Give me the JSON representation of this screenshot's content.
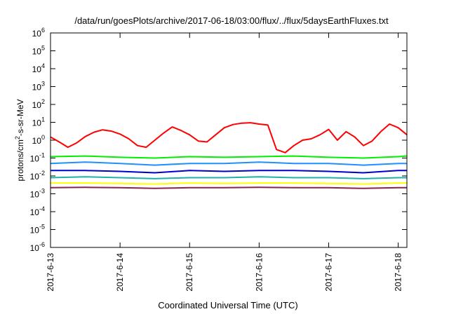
{
  "chart_data": {
    "type": "line",
    "title": "/data/run/goesPlots/archive/2017-06-18/03:00/flux/../flux/5daysEarthFluxes.txt",
    "xlabel": "Coordinated Universal Time (UTC)",
    "ylabel": {
      "pre": "protons/cm",
      "sup": "2",
      "post": "-s-sr-MeV"
    },
    "y_scale": "log",
    "ylim": [
      1e-06,
      1000000
    ],
    "y_ticks": [
      {
        "value": 1e-06,
        "base": "10",
        "exp": "-6"
      },
      {
        "value": 1e-05,
        "base": "10",
        "exp": "-5"
      },
      {
        "value": 0.0001,
        "base": "10",
        "exp": "-4"
      },
      {
        "value": 0.001,
        "base": "10",
        "exp": "-3"
      },
      {
        "value": 0.01,
        "base": "10",
        "exp": "-2"
      },
      {
        "value": 0.1,
        "base": "10",
        "exp": "-1"
      },
      {
        "value": 1,
        "base": "10",
        "exp": "0"
      },
      {
        "value": 10,
        "base": "10",
        "exp": "1"
      },
      {
        "value": 100,
        "base": "10",
        "exp": "2"
      },
      {
        "value": 1000,
        "base": "10",
        "exp": "3"
      },
      {
        "value": 10000,
        "base": "10",
        "exp": "4"
      },
      {
        "value": 100000,
        "base": "10",
        "exp": "5"
      },
      {
        "value": 1000000,
        "base": "10",
        "exp": "6"
      }
    ],
    "xlim": [
      "2017-06-13T00:00",
      "2017-06-18T03:00"
    ],
    "x_ticks": [
      {
        "value": "2017-06-13T00:00",
        "label": "2017-6-13"
      },
      {
        "value": "2017-06-14T00:00",
        "label": "2017-6-14"
      },
      {
        "value": "2017-06-15T00:00",
        "label": "2017-6-15"
      },
      {
        "value": "2017-06-16T00:00",
        "label": "2017-6-16"
      },
      {
        "value": "2017-06-17T00:00",
        "label": "2017-6-17"
      },
      {
        "value": "2017-06-18T00:00",
        "label": "2017-6-18"
      }
    ],
    "grid": false,
    "legend": "none",
    "series": [
      {
        "color": "#ff0000",
        "x": [
          "2017-06-13T00:00",
          "2017-06-13T03:00",
          "2017-06-13T06:00",
          "2017-06-13T09:00",
          "2017-06-13T12:00",
          "2017-06-13T15:00",
          "2017-06-13T18:00",
          "2017-06-13T21:00",
          "2017-06-14T00:00",
          "2017-06-14T03:00",
          "2017-06-14T06:00",
          "2017-06-14T09:00",
          "2017-06-14T12:00",
          "2017-06-14T15:00",
          "2017-06-14T18:00",
          "2017-06-14T21:00",
          "2017-06-15T00:00",
          "2017-06-15T03:00",
          "2017-06-15T06:00",
          "2017-06-15T09:00",
          "2017-06-15T12:00",
          "2017-06-15T15:00",
          "2017-06-15T18:00",
          "2017-06-15T21:00",
          "2017-06-16T00:00",
          "2017-06-16T03:00",
          "2017-06-16T06:00",
          "2017-06-16T09:00",
          "2017-06-16T12:00",
          "2017-06-16T15:00",
          "2017-06-16T18:00",
          "2017-06-16T21:00",
          "2017-06-17T00:00",
          "2017-06-17T03:00",
          "2017-06-17T06:00",
          "2017-06-17T09:00",
          "2017-06-17T12:00",
          "2017-06-17T15:00",
          "2017-06-17T18:00",
          "2017-06-17T21:00",
          "2017-06-18T00:00",
          "2017-06-18T03:00"
        ],
        "y": [
          1.5,
          0.8,
          0.4,
          0.7,
          1.6,
          2.8,
          3.8,
          3.2,
          2.2,
          1.2,
          0.5,
          0.4,
          1.0,
          2.5,
          5.5,
          3.5,
          2.0,
          0.9,
          0.8,
          2.0,
          5.0,
          7.5,
          9.0,
          9.5,
          8.0,
          7.0,
          0.3,
          0.2,
          0.5,
          1.0,
          1.2,
          2.0,
          4.0,
          1.0,
          3.0,
          1.5,
          0.5,
          0.9,
          3.0,
          8.0,
          5.0,
          2.0
        ]
      },
      {
        "color": "#00ee00",
        "x": [
          "2017-06-13T00:00",
          "2017-06-13T12:00",
          "2017-06-14T00:00",
          "2017-06-14T12:00",
          "2017-06-15T00:00",
          "2017-06-15T12:00",
          "2017-06-16T00:00",
          "2017-06-16T12:00",
          "2017-06-17T00:00",
          "2017-06-17T12:00",
          "2017-06-18T00:00",
          "2017-06-18T03:00"
        ],
        "y": [
          0.12,
          0.13,
          0.11,
          0.1,
          0.12,
          0.11,
          0.12,
          0.13,
          0.11,
          0.1,
          0.12,
          0.13
        ]
      },
      {
        "color": "#1e90ff",
        "x": [
          "2017-06-13T00:00",
          "2017-06-13T12:00",
          "2017-06-14T00:00",
          "2017-06-14T12:00",
          "2017-06-15T00:00",
          "2017-06-15T12:00",
          "2017-06-16T00:00",
          "2017-06-16T12:00",
          "2017-06-17T00:00",
          "2017-06-17T12:00",
          "2017-06-18T00:00",
          "2017-06-18T03:00"
        ],
        "y": [
          0.05,
          0.06,
          0.05,
          0.04,
          0.05,
          0.05,
          0.06,
          0.05,
          0.05,
          0.04,
          0.05,
          0.05
        ]
      },
      {
        "color": "#0000cd",
        "x": [
          "2017-06-13T00:00",
          "2017-06-13T12:00",
          "2017-06-14T00:00",
          "2017-06-14T12:00",
          "2017-06-15T00:00",
          "2017-06-15T12:00",
          "2017-06-16T00:00",
          "2017-06-16T12:00",
          "2017-06-17T00:00",
          "2017-06-17T12:00",
          "2017-06-18T00:00",
          "2017-06-18T03:00"
        ],
        "y": [
          0.02,
          0.02,
          0.018,
          0.015,
          0.02,
          0.018,
          0.02,
          0.02,
          0.018,
          0.015,
          0.02,
          0.02
        ]
      },
      {
        "color": "#20b2aa",
        "x": [
          "2017-06-13T00:00",
          "2017-06-13T12:00",
          "2017-06-14T00:00",
          "2017-06-14T12:00",
          "2017-06-15T00:00",
          "2017-06-15T12:00",
          "2017-06-16T00:00",
          "2017-06-16T12:00",
          "2017-06-17T00:00",
          "2017-06-17T12:00",
          "2017-06-18T00:00",
          "2017-06-18T03:00"
        ],
        "y": [
          0.008,
          0.009,
          0.008,
          0.007,
          0.008,
          0.008,
          0.009,
          0.008,
          0.008,
          0.007,
          0.008,
          0.008
        ]
      },
      {
        "color": "#ffff00",
        "x": [
          "2017-06-13T00:00",
          "2017-06-13T12:00",
          "2017-06-14T00:00",
          "2017-06-14T12:00",
          "2017-06-15T00:00",
          "2017-06-15T12:00",
          "2017-06-16T00:00",
          "2017-06-16T12:00",
          "2017-06-17T00:00",
          "2017-06-17T12:00",
          "2017-06-18T00:00",
          "2017-06-18T03:00"
        ],
        "y": [
          0.004,
          0.004,
          0.0038,
          0.0035,
          0.004,
          0.0038,
          0.004,
          0.004,
          0.0038,
          0.0035,
          0.004,
          0.004
        ]
      },
      {
        "color": "#8b2252",
        "x": [
          "2017-06-13T00:00",
          "2017-06-13T12:00",
          "2017-06-14T00:00",
          "2017-06-14T12:00",
          "2017-06-15T00:00",
          "2017-06-15T12:00",
          "2017-06-16T00:00",
          "2017-06-16T12:00",
          "2017-06-17T00:00",
          "2017-06-17T12:00",
          "2017-06-18T00:00",
          "2017-06-18T03:00"
        ],
        "y": [
          0.0022,
          0.0023,
          0.0022,
          0.002,
          0.0022,
          0.0022,
          0.0023,
          0.0022,
          0.0022,
          0.002,
          0.0022,
          0.0022
        ]
      }
    ]
  }
}
